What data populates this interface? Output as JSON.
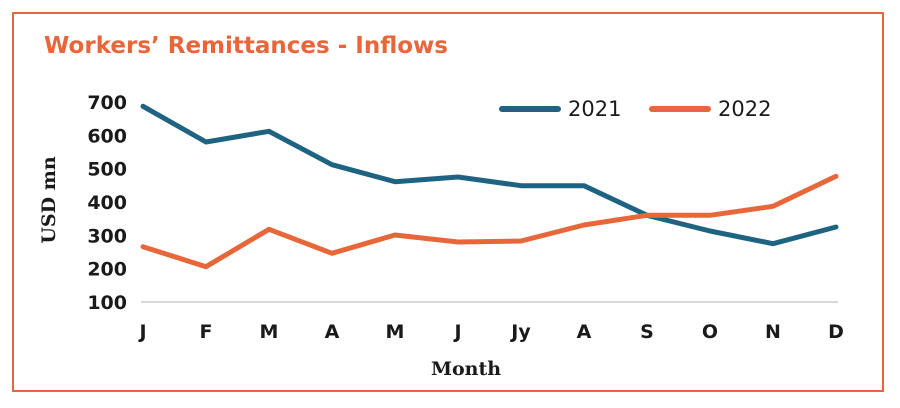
{
  "chart_data": {
    "type": "line",
    "title": "Workers’ Remittances - Inflows",
    "xlabel": "Month",
    "ylabel": "USD mn",
    "categories": [
      "J",
      "F",
      "M",
      "A",
      "M",
      "J",
      "Jy",
      "A",
      "S",
      "O",
      "N",
      "D"
    ],
    "yticks": [
      100,
      200,
      300,
      400,
      500,
      600,
      700
    ],
    "ylim": [
      100,
      700
    ],
    "grid": false,
    "legend_position": "top-right",
    "series": [
      {
        "name": "2021",
        "color": "#1E6382",
        "values": [
          687,
          580,
          612,
          512,
          461,
          475,
          449,
          449,
          360,
          313,
          275,
          325
        ]
      },
      {
        "name": "2022",
        "color": "#E8673A",
        "values": [
          266,
          206,
          318,
          246,
          301,
          280,
          283,
          331,
          360,
          360,
          387,
          477
        ]
      }
    ]
  },
  "colors": {
    "frame": "#E8673A",
    "title": "#E8673A",
    "axis": "#cccccc"
  }
}
